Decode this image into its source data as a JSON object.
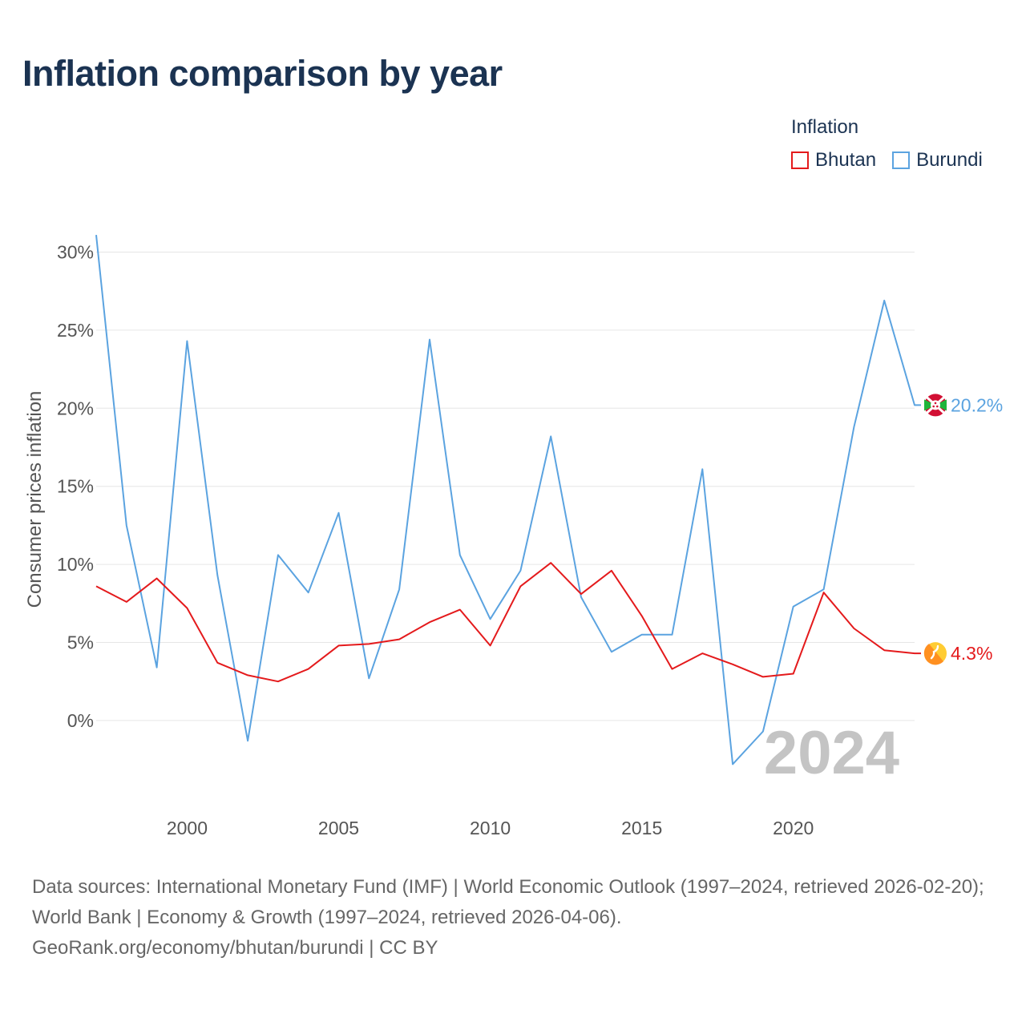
{
  "title": "Inflation comparison by year",
  "legend": {
    "title": "Inflation",
    "items": [
      {
        "name": "Bhutan",
        "color": "#e41a1c"
      },
      {
        "name": "Burundi",
        "color": "#5ba3e0"
      }
    ]
  },
  "chart_data": {
    "type": "line",
    "title": "Inflation comparison by year",
    "xlabel": "",
    "ylabel": "Consumer prices inflation",
    "xlim": [
      1997,
      2024
    ],
    "ylim": [
      -5.5,
      31.5
    ],
    "x_ticks": [
      2000,
      2005,
      2010,
      2015,
      2020
    ],
    "y_ticks": [
      0,
      5,
      10,
      15,
      20,
      25,
      30
    ],
    "y_tick_labels": [
      "0%",
      "5%",
      "10%",
      "15%",
      "20%",
      "25%",
      "30%"
    ],
    "grid": true,
    "year_watermark": "2024",
    "x": [
      1997,
      1998,
      1999,
      2000,
      2001,
      2002,
      2003,
      2004,
      2005,
      2006,
      2007,
      2008,
      2009,
      2010,
      2011,
      2012,
      2013,
      2014,
      2015,
      2016,
      2017,
      2018,
      2019,
      2020,
      2021,
      2022,
      2023,
      2024
    ],
    "series": [
      {
        "name": "Bhutan",
        "color": "#e41a1c",
        "end_label": "4.3%",
        "values": [
          8.6,
          7.6,
          9.1,
          7.2,
          3.7,
          2.9,
          2.5,
          3.3,
          4.8,
          4.9,
          5.2,
          6.3,
          7.1,
          4.8,
          8.6,
          10.1,
          8.1,
          9.6,
          6.7,
          3.3,
          4.3,
          3.6,
          2.8,
          3.0,
          8.2,
          5.9,
          4.5,
          4.3
        ]
      },
      {
        "name": "Burundi",
        "color": "#5ba3e0",
        "end_label": "20.2%",
        "values": [
          31.1,
          12.5,
          3.4,
          24.3,
          9.3,
          -1.3,
          10.6,
          8.2,
          13.3,
          2.7,
          8.4,
          24.4,
          10.6,
          6.5,
          9.6,
          18.2,
          7.9,
          4.4,
          5.5,
          5.5,
          16.1,
          -2.8,
          -0.7,
          7.3,
          8.4,
          18.8,
          26.9,
          20.2
        ]
      }
    ]
  },
  "footer": {
    "sources": "Data sources: International Monetary Fund (IMF) | World Economic Outlook (1997–2024, retrieved 2026-02-20); World Bank | Economy & Growth (1997–2024, retrieved 2026-04-06).",
    "credit": "GeoRank.org/economy/bhutan/burundi | CC BY"
  }
}
